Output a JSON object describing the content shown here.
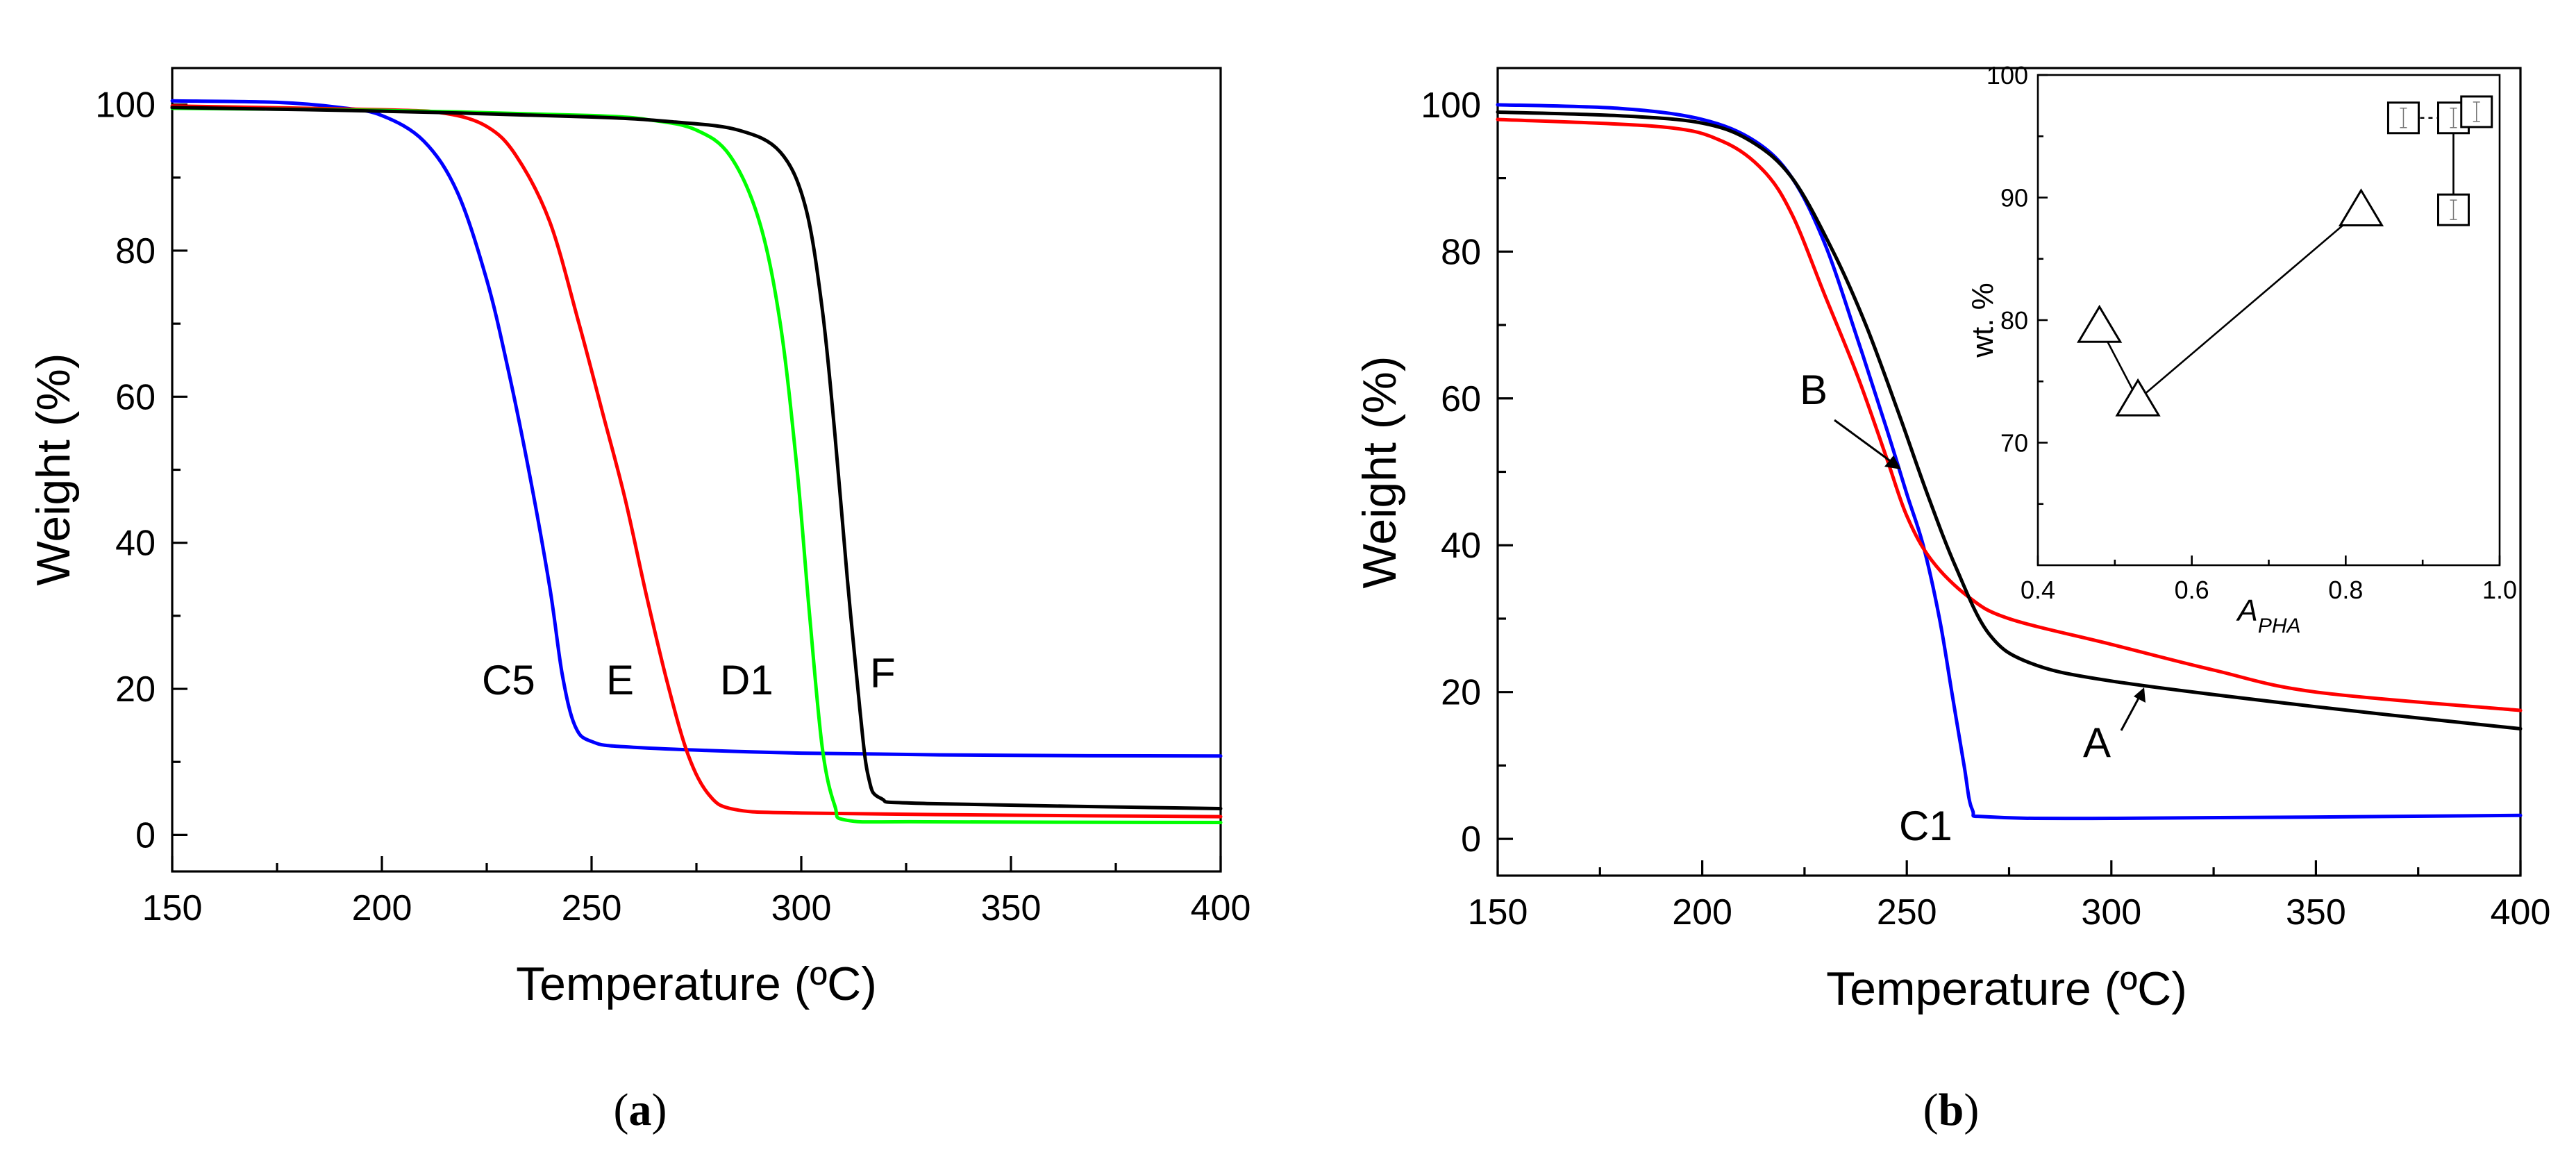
{
  "chart_data": [
    {
      "panel": "a",
      "type": "line",
      "xlabel": "Temperature (ºC)",
      "ylabel": "Weight (%)",
      "xlim": [
        150,
        400
      ],
      "ylim": [
        -5,
        105
      ],
      "xticks": [
        150,
        200,
        250,
        300,
        350,
        400
      ],
      "yticks": [
        0,
        20,
        40,
        60,
        80,
        100
      ],
      "series": [
        {
          "name": "C5",
          "color": "#0000ff",
          "points": [
            [
              150,
              100.5
            ],
            [
              175,
              100.3
            ],
            [
              190,
              99.6
            ],
            [
              200,
              98.5
            ],
            [
              210,
              95
            ],
            [
              218,
              88
            ],
            [
              225,
              76
            ],
            [
              230,
              64
            ],
            [
              235,
              50
            ],
            [
              240,
              34
            ],
            [
              243,
              22
            ],
            [
              246,
              15
            ],
            [
              250,
              12.8
            ],
            [
              260,
              12
            ],
            [
              300,
              11.2
            ],
            [
              350,
              10.9
            ],
            [
              400,
              10.8
            ]
          ]
        },
        {
          "name": "E",
          "color": "#ff0000",
          "points": [
            [
              150,
              99.8
            ],
            [
              200,
              99.3
            ],
            [
              215,
              98.8
            ],
            [
              225,
              97
            ],
            [
              232,
              93
            ],
            [
              240,
              84
            ],
            [
              247,
              70
            ],
            [
              253,
              57
            ],
            [
              258,
              46
            ],
            [
              263,
              33
            ],
            [
              268,
              21
            ],
            [
              273,
              11
            ],
            [
              278,
              5.5
            ],
            [
              284,
              3.5
            ],
            [
              300,
              3
            ],
            [
              350,
              2.7
            ],
            [
              400,
              2.5
            ]
          ]
        },
        {
          "name": "D1",
          "color": "#00ff00",
          "points": [
            [
              150,
              99.5
            ],
            [
              200,
              99.2
            ],
            [
              250,
              98.5
            ],
            [
              265,
              97.8
            ],
            [
              275,
              96.5
            ],
            [
              283,
              93
            ],
            [
              290,
              84
            ],
            [
              295,
              70
            ],
            [
              299,
              50
            ],
            [
              302,
              30
            ],
            [
              305,
              12
            ],
            [
              308,
              4
            ],
            [
              311,
              2
            ],
            [
              330,
              1.8
            ],
            [
              400,
              1.7
            ]
          ]
        },
        {
          "name": "F",
          "color": "#000000",
          "points": [
            [
              150,
              99.6
            ],
            [
              200,
              99.1
            ],
            [
              250,
              98.3
            ],
            [
              270,
              97.6
            ],
            [
              285,
              96.5
            ],
            [
              295,
              93.5
            ],
            [
              301,
              86
            ],
            [
              305,
              72
            ],
            [
              308,
              55
            ],
            [
              311,
              35
            ],
            [
              314,
              17
            ],
            [
              316,
              8
            ],
            [
              319,
              5
            ],
            [
              330,
              4.3
            ],
            [
              400,
              3.6
            ]
          ]
        }
      ],
      "annotations": [
        "C5",
        "E",
        "D1",
        "F"
      ]
    },
    {
      "panel": "b",
      "type": "line",
      "xlabel": "Temperature (ºC)",
      "ylabel": "Weight (%)",
      "xlim": [
        150,
        400
      ],
      "ylim": [
        -5,
        105
      ],
      "xticks": [
        150,
        200,
        250,
        300,
        350,
        400
      ],
      "yticks": [
        0,
        20,
        40,
        60,
        80,
        100
      ],
      "series": [
        {
          "name": "C1",
          "color": "#0000ff",
          "points": [
            [
              150,
              100
            ],
            [
              180,
              99.5
            ],
            [
              200,
              98
            ],
            [
              213,
              95
            ],
            [
              222,
              90
            ],
            [
              230,
              81
            ],
            [
              238,
              68
            ],
            [
              245,
              56
            ],
            [
              250,
              47
            ],
            [
              254,
              40
            ],
            [
              258,
              30
            ],
            [
              261,
              20
            ],
            [
              264,
              10
            ],
            [
              266,
              4
            ],
            [
              270,
              3
            ],
            [
              300,
              2.8
            ],
            [
              400,
              3.2
            ]
          ]
        },
        {
          "name": "B",
          "color": "#ff0000",
          "points": [
            [
              150,
              98
            ],
            [
              190,
              97
            ],
            [
              205,
              95
            ],
            [
              215,
              91
            ],
            [
              222,
              85
            ],
            [
              230,
              74
            ],
            [
              238,
              63
            ],
            [
              245,
              52
            ],
            [
              250,
              44
            ],
            [
              256,
              38
            ],
            [
              265,
              33
            ],
            [
              275,
              30
            ],
            [
              300,
              26.5
            ],
            [
              325,
              23
            ],
            [
              350,
              20
            ],
            [
              400,
              17.5
            ]
          ]
        },
        {
          "name": "A",
          "color": "#000000",
          "points": [
            [
              150,
              99
            ],
            [
              180,
              98.5
            ],
            [
              200,
              97.5
            ],
            [
              212,
              95
            ],
            [
              222,
              90
            ],
            [
              232,
              80
            ],
            [
              240,
              70
            ],
            [
              248,
              58
            ],
            [
              255,
              47
            ],
            [
              262,
              37
            ],
            [
              270,
              28
            ],
            [
              280,
              24
            ],
            [
              300,
              21.5
            ],
            [
              350,
              18
            ],
            [
              400,
              15
            ]
          ]
        }
      ],
      "annotations": [
        "B",
        "A",
        "C1"
      ],
      "inset": {
        "type": "scatter",
        "xlabel": "A",
        "xlabel_sub": "PHA",
        "ylabel": "wt. %",
        "xlim": [
          0.4,
          1.0
        ],
        "ylim": [
          60,
          100
        ],
        "xticks": [
          "0.4",
          "0.6",
          "0.8",
          "1.0"
        ],
        "yticks": [
          "70",
          "80",
          "90",
          "100"
        ],
        "triangles": [
          [
            0.48,
            79.5
          ],
          [
            0.53,
            73.5
          ],
          [
            0.82,
            89
          ]
        ],
        "triangle_links": [
          [
            0,
            1
          ],
          [
            1,
            2
          ]
        ],
        "squares": [
          [
            0.875,
            96.5
          ],
          [
            0.94,
            96.5
          ],
          [
            0.97,
            97
          ],
          [
            0.94,
            89
          ]
        ],
        "square_links": [
          [
            1,
            3
          ]
        ]
      }
    }
  ],
  "panel_labels": {
    "a": "(a)",
    "b": "(b)"
  }
}
